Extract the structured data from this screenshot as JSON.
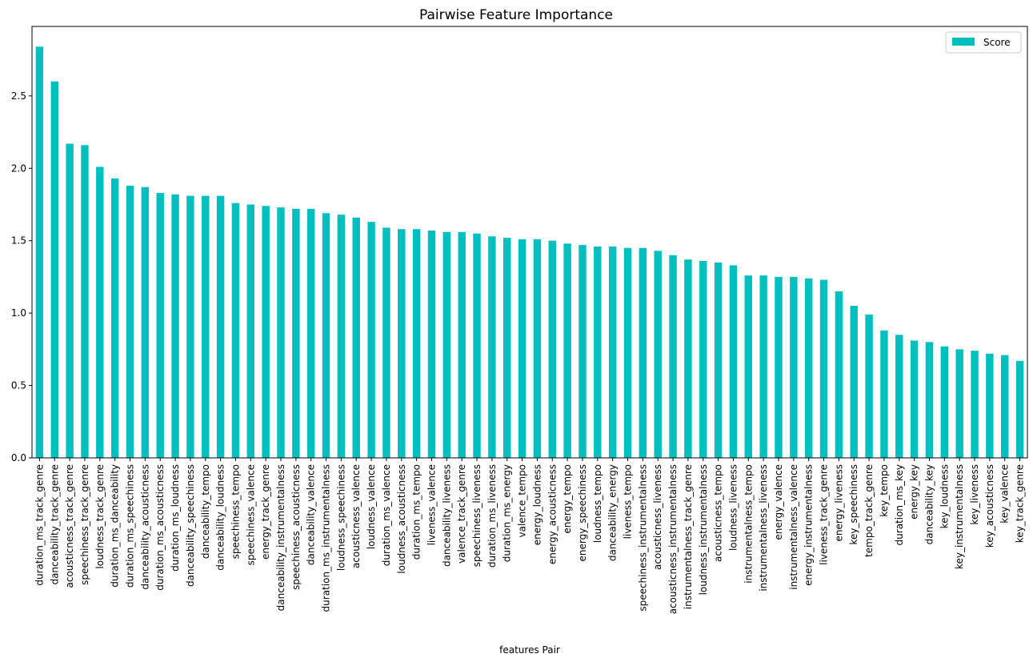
{
  "chart_data": {
    "type": "bar",
    "title": "Pairwise Feature Importance",
    "xlabel": "features Pair",
    "ylabel": "",
    "ylim": [
      0,
      2.98
    ],
    "yticks": [
      0.0,
      0.5,
      1.0,
      1.5,
      2.0,
      2.5
    ],
    "ytick_labels": [
      "0.0",
      "0.5",
      "1.0",
      "1.5",
      "2.0",
      "2.5"
    ],
    "grid": false,
    "legend_position": "top-right",
    "bar_color": "#00bfbf",
    "categories": [
      "duration_ms_track_genre",
      "danceability_track_genre",
      "acousticness_track_genre",
      "speechiness_track_genre",
      "loudness_track_genre",
      "duration_ms_danceability",
      "duration_ms_speechiness",
      "danceability_acousticness",
      "duration_ms_acousticness",
      "duration_ms_loudness",
      "danceability_speechiness",
      "danceability_tempo",
      "danceability_loudness",
      "speechiness_tempo",
      "speechiness_valence",
      "energy_track_genre",
      "danceability_instrumentalness",
      "speechiness_acousticness",
      "danceability_valence",
      "duration_ms_instrumentalness",
      "loudness_speechiness",
      "acousticness_valence",
      "loudness_valence",
      "duration_ms_valence",
      "loudness_acousticness",
      "duration_ms_tempo",
      "liveness_valence",
      "danceability_liveness",
      "valence_track_genre",
      "speechiness_liveness",
      "duration_ms_liveness",
      "duration_ms_energy",
      "valence_tempo",
      "energy_loudness",
      "energy_acousticness",
      "energy_tempo",
      "energy_speechiness",
      "loudness_tempo",
      "danceability_energy",
      "liveness_tempo",
      "speechiness_instrumentalness",
      "acousticness_liveness",
      "acousticness_instrumentalness",
      "instrumentalness_track_genre",
      "loudness_instrumentalness",
      "acousticness_tempo",
      "loudness_liveness",
      "instrumentalness_tempo",
      "instrumentalness_liveness",
      "energy_valence",
      "instrumentalness_valence",
      "energy_instrumentalness",
      "liveness_track_genre",
      "energy_liveness",
      "key_speechiness",
      "tempo_track_genre",
      "key_tempo",
      "duration_ms_key",
      "energy_key",
      "danceability_key",
      "key_loudness",
      "key_instrumentalness",
      "key_liveness",
      "key_acousticness",
      "key_valence",
      "key_track_genre"
    ],
    "series": [
      {
        "name": "Score",
        "values": [
          2.84,
          2.6,
          2.17,
          2.16,
          2.01,
          1.93,
          1.88,
          1.87,
          1.83,
          1.82,
          1.81,
          1.81,
          1.81,
          1.76,
          1.75,
          1.74,
          1.73,
          1.72,
          1.72,
          1.69,
          1.68,
          1.66,
          1.63,
          1.59,
          1.58,
          1.58,
          1.57,
          1.56,
          1.56,
          1.55,
          1.53,
          1.52,
          1.51,
          1.51,
          1.5,
          1.48,
          1.47,
          1.46,
          1.46,
          1.45,
          1.45,
          1.43,
          1.4,
          1.37,
          1.36,
          1.35,
          1.33,
          1.26,
          1.26,
          1.25,
          1.25,
          1.24,
          1.23,
          1.15,
          1.05,
          0.99,
          0.88,
          0.85,
          0.81,
          0.8,
          0.77,
          0.75,
          0.74,
          0.72,
          0.71,
          0.67
        ]
      }
    ]
  }
}
